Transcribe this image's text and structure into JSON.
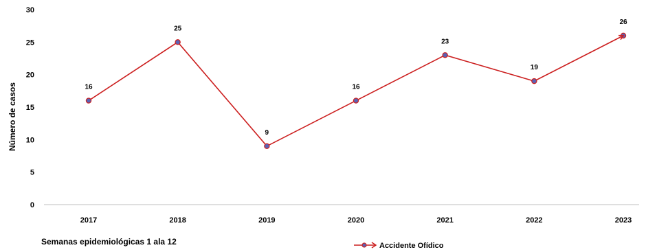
{
  "chart_data": {
    "type": "line",
    "categories": [
      "2017",
      "2018",
      "2019",
      "2020",
      "2021",
      "2022",
      "2023"
    ],
    "series": [
      {
        "name": "Accidente Ofídico",
        "values": [
          16,
          25,
          9,
          16,
          23,
          19,
          26
        ]
      }
    ],
    "ylabel": "Número de casos",
    "xlabel": "Semanas epidemiológicas 1 ala 12",
    "ylim": [
      0,
      30
    ],
    "yticks": [
      0,
      5,
      10,
      15,
      20,
      25,
      30
    ],
    "grid": false,
    "legend": "bottom-center",
    "colors": {
      "line": "#cc1f1f",
      "marker_fill": "#5b63b5",
      "marker_edge": "#cc1f1f",
      "axis": "#bfbfbf"
    }
  }
}
